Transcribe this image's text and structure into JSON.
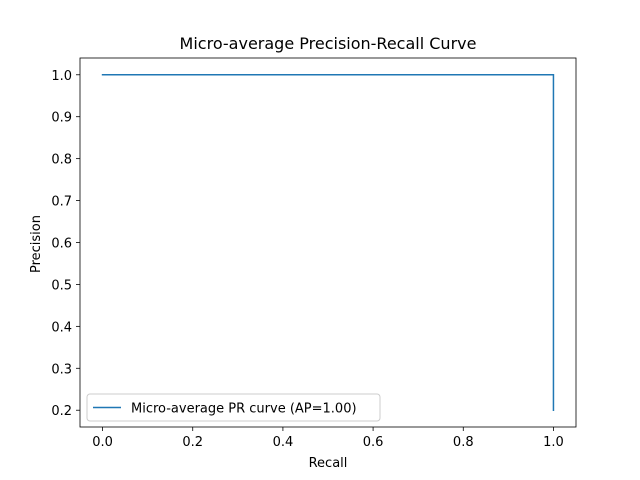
{
  "chart_data": {
    "type": "line",
    "title": "Micro-average Precision-Recall Curve",
    "xlabel": "Recall",
    "ylabel": "Precision",
    "xlim": [
      -0.05,
      1.05
    ],
    "ylim": [
      0.16,
      1.04
    ],
    "xticks": [
      "0.0",
      "0.2",
      "0.4",
      "0.6",
      "0.8",
      "1.0"
    ],
    "yticks": [
      "0.2",
      "0.3",
      "0.4",
      "0.5",
      "0.6",
      "0.7",
      "0.8",
      "0.9",
      "1.0"
    ],
    "grid": false,
    "legend_position": "lower-left",
    "series": [
      {
        "name": "Micro-average PR curve (AP=1.00)",
        "color": "#1f77b4",
        "x": [
          0.0,
          1.0,
          1.0
        ],
        "y": [
          1.0,
          1.0,
          0.2
        ]
      }
    ]
  }
}
